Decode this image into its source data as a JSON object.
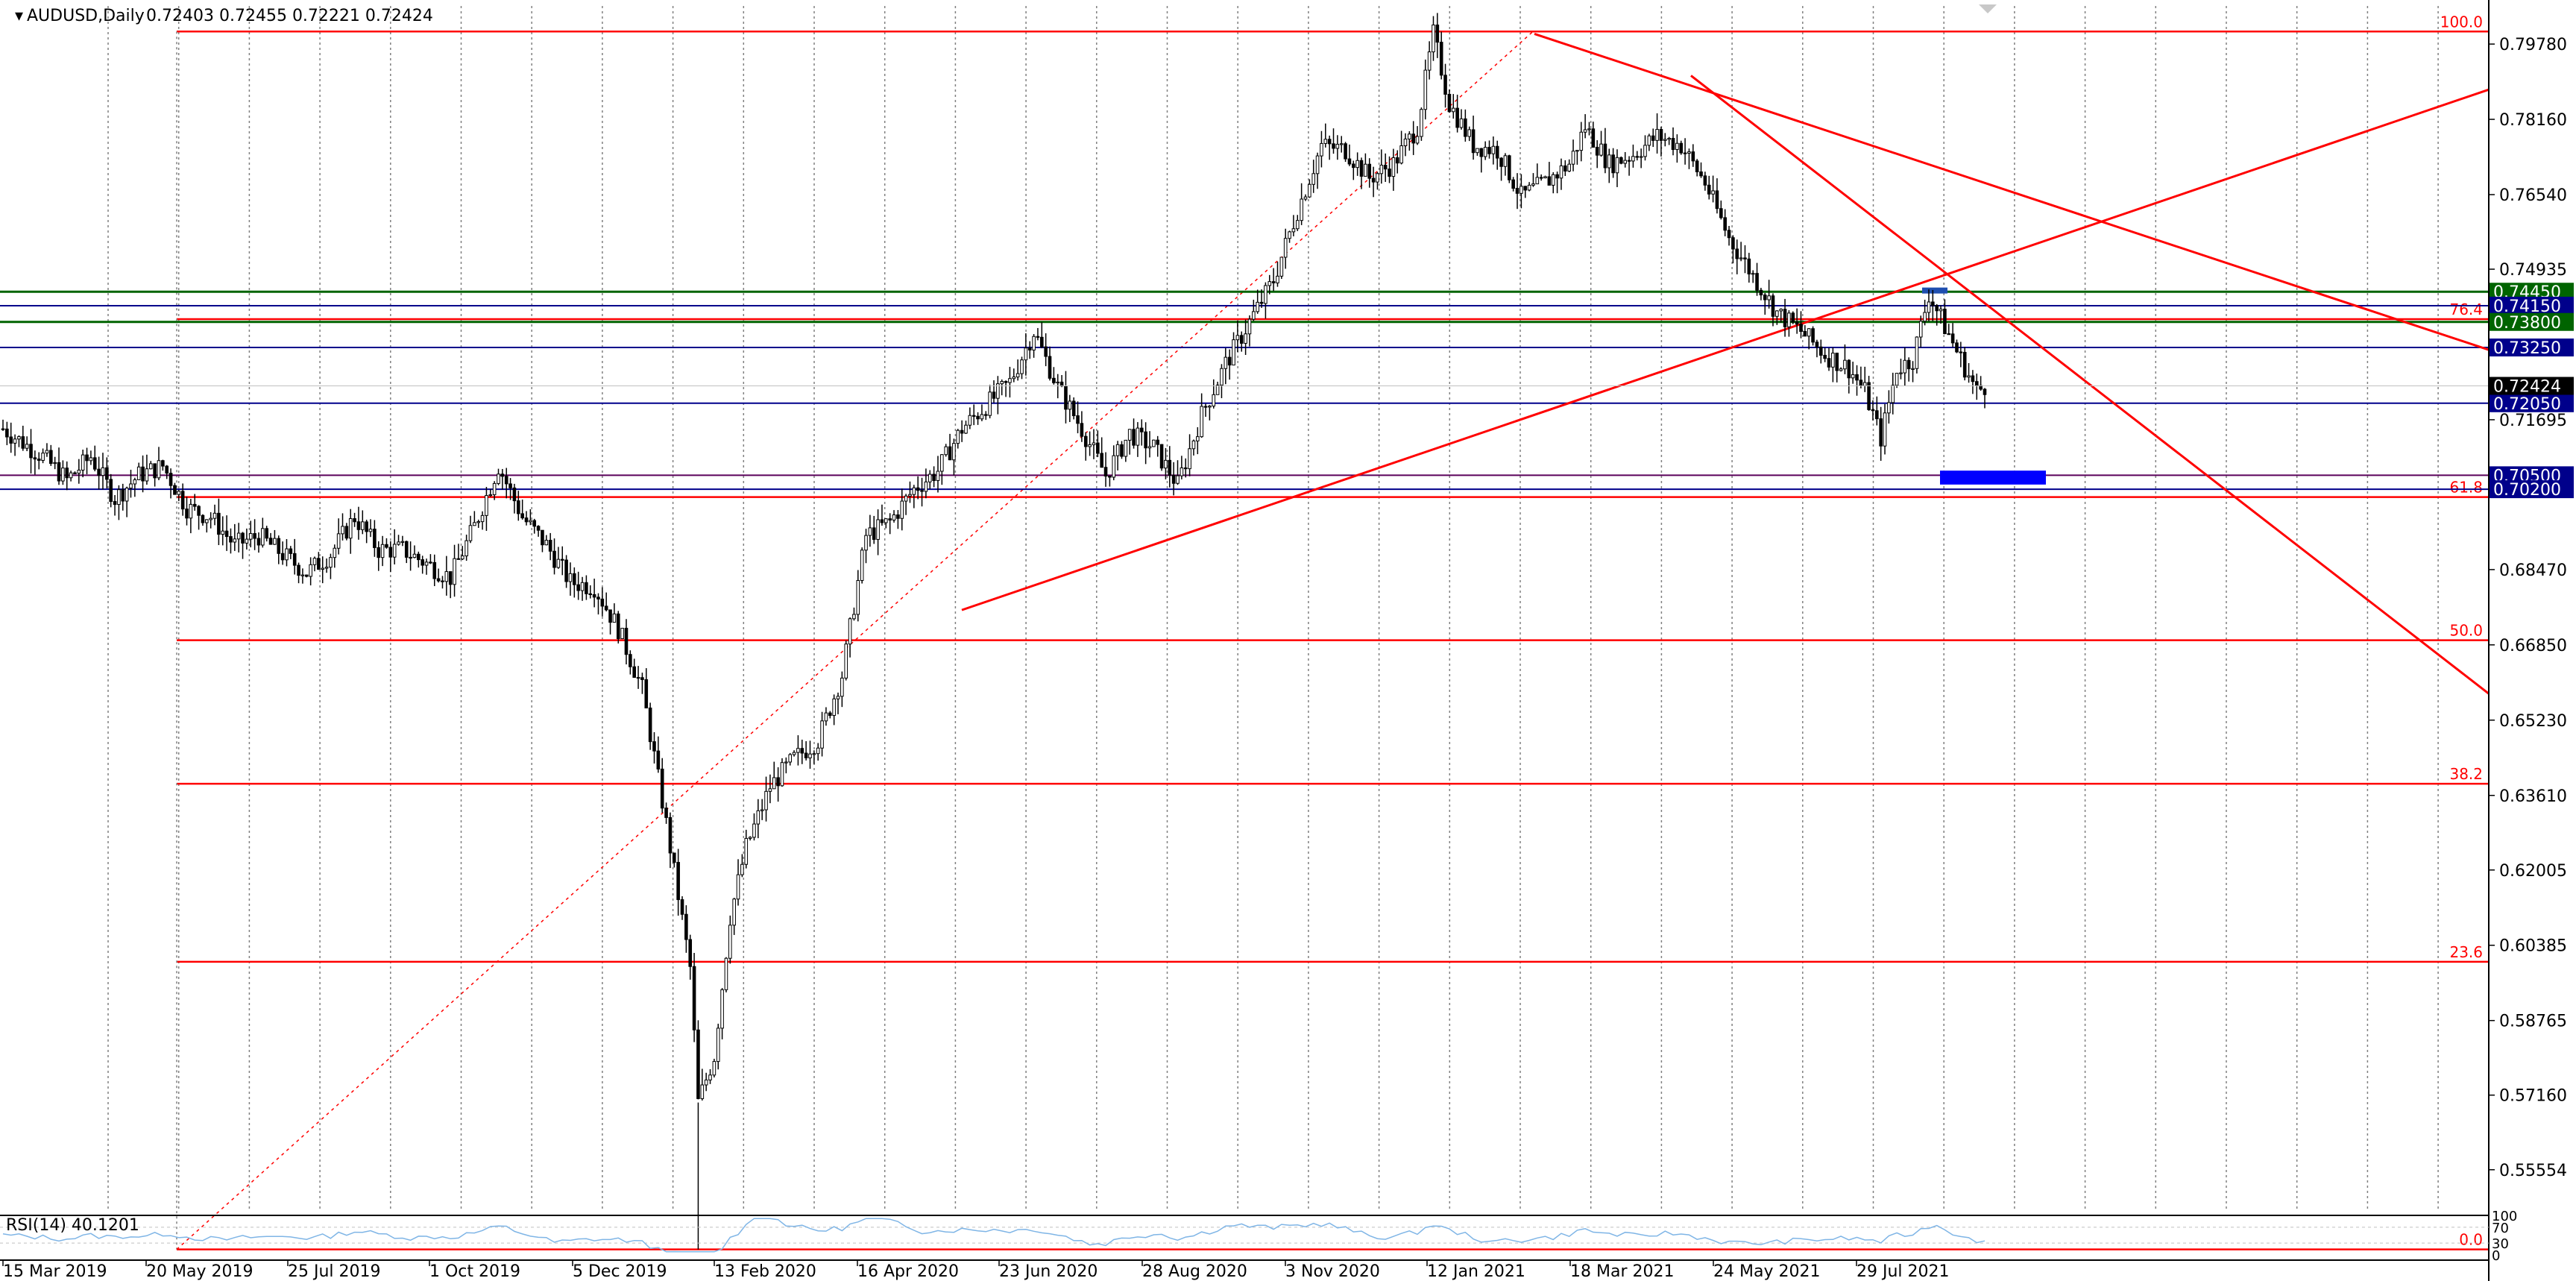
{
  "header": {
    "symbol": "AUDUSD,Daily",
    "ohlc": "0.72403 0.72455 0.72221 0.72424"
  },
  "rsi_label": "RSI(14) 40.1201",
  "rsi_axis_labels": [
    "100",
    "70",
    "30",
    "0"
  ],
  "colors": {
    "candles": "#000000",
    "fib": "#ff0000",
    "green_level": "#006400",
    "blue_level": "#00008b",
    "zone": "#0000ff",
    "rsi": "#7fb5e6",
    "grid": "#808080",
    "price_tag": "#000000"
  },
  "chart_data": {
    "type": "candlestick",
    "symbol": "AUDUSD",
    "timeframe": "Daily",
    "ylim": [
      0.547,
      0.806
    ],
    "y_ticks": [
      "0.79780",
      "0.78160",
      "0.76540",
      "0.74935",
      "0.71695",
      "0.68470",
      "0.66850",
      "0.65230",
      "0.63610",
      "0.62005",
      "0.60385",
      "0.58765",
      "0.57160",
      "0.55554"
    ],
    "x_tick_labels": [
      "15 Mar 2019",
      "20 May 2019",
      "25 Jul 2019",
      "1 Oct 2019",
      "5 Dec 2019",
      "13 Feb 2020",
      "16 Apr 2020",
      "23 Jun 2020",
      "28 Aug 2020",
      "3 Nov 2020",
      "12 Jan 2021",
      "18 Mar 2021",
      "24 May 2021",
      "29 Jul 2021"
    ],
    "close_path": [
      [
        0,
        0.715
      ],
      [
        10,
        0.709
      ],
      [
        16,
        0.704
      ],
      [
        22,
        0.709
      ],
      [
        28,
        0.7
      ],
      [
        34,
        0.705
      ],
      [
        40,
        0.707
      ],
      [
        46,
        0.698
      ],
      [
        52,
        0.696
      ],
      [
        58,
        0.69
      ],
      [
        64,
        0.692
      ],
      [
        70,
        0.688
      ],
      [
        76,
        0.684
      ],
      [
        82,
        0.688
      ],
      [
        88,
        0.696
      ],
      [
        94,
        0.689
      ],
      [
        100,
        0.689
      ],
      [
        106,
        0.686
      ],
      [
        112,
        0.683
      ],
      [
        118,
        0.694
      ],
      [
        124,
        0.707
      ],
      [
        130,
        0.696
      ],
      [
        136,
        0.69
      ],
      [
        142,
        0.682
      ],
      [
        148,
        0.681
      ],
      [
        154,
        0.672
      ],
      [
        160,
        0.659
      ],
      [
        166,
        0.63
      ],
      [
        172,
        0.599
      ],
      [
        174,
        0.57
      ],
      [
        178,
        0.58
      ],
      [
        182,
        0.61
      ],
      [
        186,
        0.625
      ],
      [
        192,
        0.638
      ],
      [
        198,
        0.644
      ],
      [
        204,
        0.648
      ],
      [
        210,
        0.662
      ],
      [
        216,
        0.692
      ],
      [
        222,
        0.695
      ],
      [
        228,
        0.702
      ],
      [
        234,
        0.706
      ],
      [
        240,
        0.715
      ],
      [
        246,
        0.72
      ],
      [
        252,
        0.725
      ],
      [
        258,
        0.736
      ],
      [
        264,
        0.724
      ],
      [
        270,
        0.715
      ],
      [
        276,
        0.705
      ],
      [
        282,
        0.714
      ],
      [
        288,
        0.711
      ],
      [
        294,
        0.703
      ],
      [
        300,
        0.718
      ],
      [
        306,
        0.729
      ],
      [
        312,
        0.738
      ],
      [
        318,
        0.747
      ],
      [
        324,
        0.762
      ],
      [
        330,
        0.776
      ],
      [
        336,
        0.775
      ],
      [
        342,
        0.769
      ],
      [
        348,
        0.772
      ],
      [
        354,
        0.78
      ],
      [
        358,
        0.8
      ],
      [
        362,
        0.785
      ],
      [
        368,
        0.776
      ],
      [
        374,
        0.775
      ],
      [
        380,
        0.765
      ],
      [
        386,
        0.768
      ],
      [
        392,
        0.772
      ],
      [
        396,
        0.78
      ],
      [
        402,
        0.772
      ],
      [
        408,
        0.774
      ],
      [
        414,
        0.778
      ],
      [
        420,
        0.776
      ],
      [
        426,
        0.768
      ],
      [
        432,
        0.756
      ],
      [
        438,
        0.748
      ],
      [
        444,
        0.74
      ],
      [
        450,
        0.736
      ],
      [
        456,
        0.731
      ],
      [
        462,
        0.728
      ],
      [
        466,
        0.723
      ],
      [
        470,
        0.713
      ],
      [
        474,
        0.728
      ],
      [
        478,
        0.73
      ],
      [
        482,
        0.744
      ],
      [
        486,
        0.737
      ],
      [
        490,
        0.73
      ],
      [
        494,
        0.723
      ],
      [
        496,
        0.7242
      ]
    ],
    "last_price": "0.72424",
    "horizontal_levels": [
      {
        "label": "0.74450",
        "kind": "green",
        "value": 0.7445
      },
      {
        "label": "0.74150",
        "kind": "blue",
        "value": 0.7415
      },
      {
        "label": "0.73800",
        "kind": "green",
        "value": 0.738
      },
      {
        "label": "0.73250",
        "kind": "blue",
        "value": 0.7325
      },
      {
        "label": "0.72050",
        "kind": "blue",
        "value": 0.7205
      },
      {
        "label": "0.70500",
        "kind": "purple",
        "value": 0.705
      },
      {
        "label": "0.70200",
        "kind": "blue",
        "value": 0.702
      }
    ],
    "fibonacci": {
      "high": 0.8005,
      "low": 0.5384,
      "levels": [
        {
          "label": "100.0",
          "value": 0.8005
        },
        {
          "label": "76.4",
          "value": 0.7386
        },
        {
          "label": "61.8",
          "value": 0.7003
        },
        {
          "label": "50.0",
          "value": 0.6695
        },
        {
          "label": "38.2",
          "value": 0.6386
        },
        {
          "label": "23.6",
          "value": 0.6003
        },
        {
          "label": "0.0",
          "value": 0.5384
        }
      ]
    },
    "rsi": {
      "period": 14,
      "value": 40.1201,
      "ylim": [
        0,
        100
      ]
    }
  }
}
